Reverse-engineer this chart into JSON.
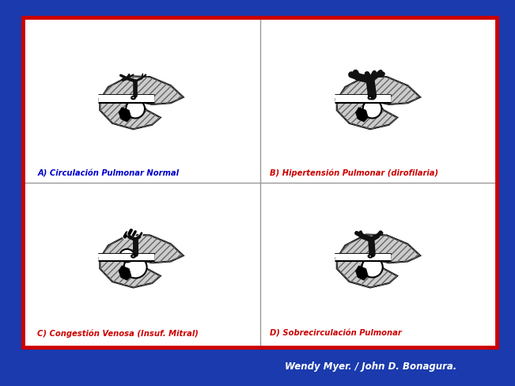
{
  "outer_bg_color": "#1a3aad",
  "inner_bg_color": "#ffffff",
  "border_outer_color": "#3355cc",
  "border_inner_color": "#cc0000",
  "figure_size": [
    6.51,
    4.88
  ],
  "dpi": 100,
  "labels": [
    "A) Circulación Pulmonar Normal",
    "B) Hipertensión Pulmonar (dirofilaria)",
    "C) Congestión Venosa (Insuf. Mitral)",
    "D) Sobrecirculación Pulmonar"
  ],
  "label_colors": [
    "#0000cc",
    "#cc0000",
    "#cc0000",
    "#cc0000"
  ],
  "footer_text": "Wendy Myer. / John D. Bonagura.",
  "footer_color": "#ffffff",
  "hatch_color": "#555555",
  "lung_fill": "#cccccc",
  "vessel_color": "#111111",
  "heart_fill": "#ffffff"
}
